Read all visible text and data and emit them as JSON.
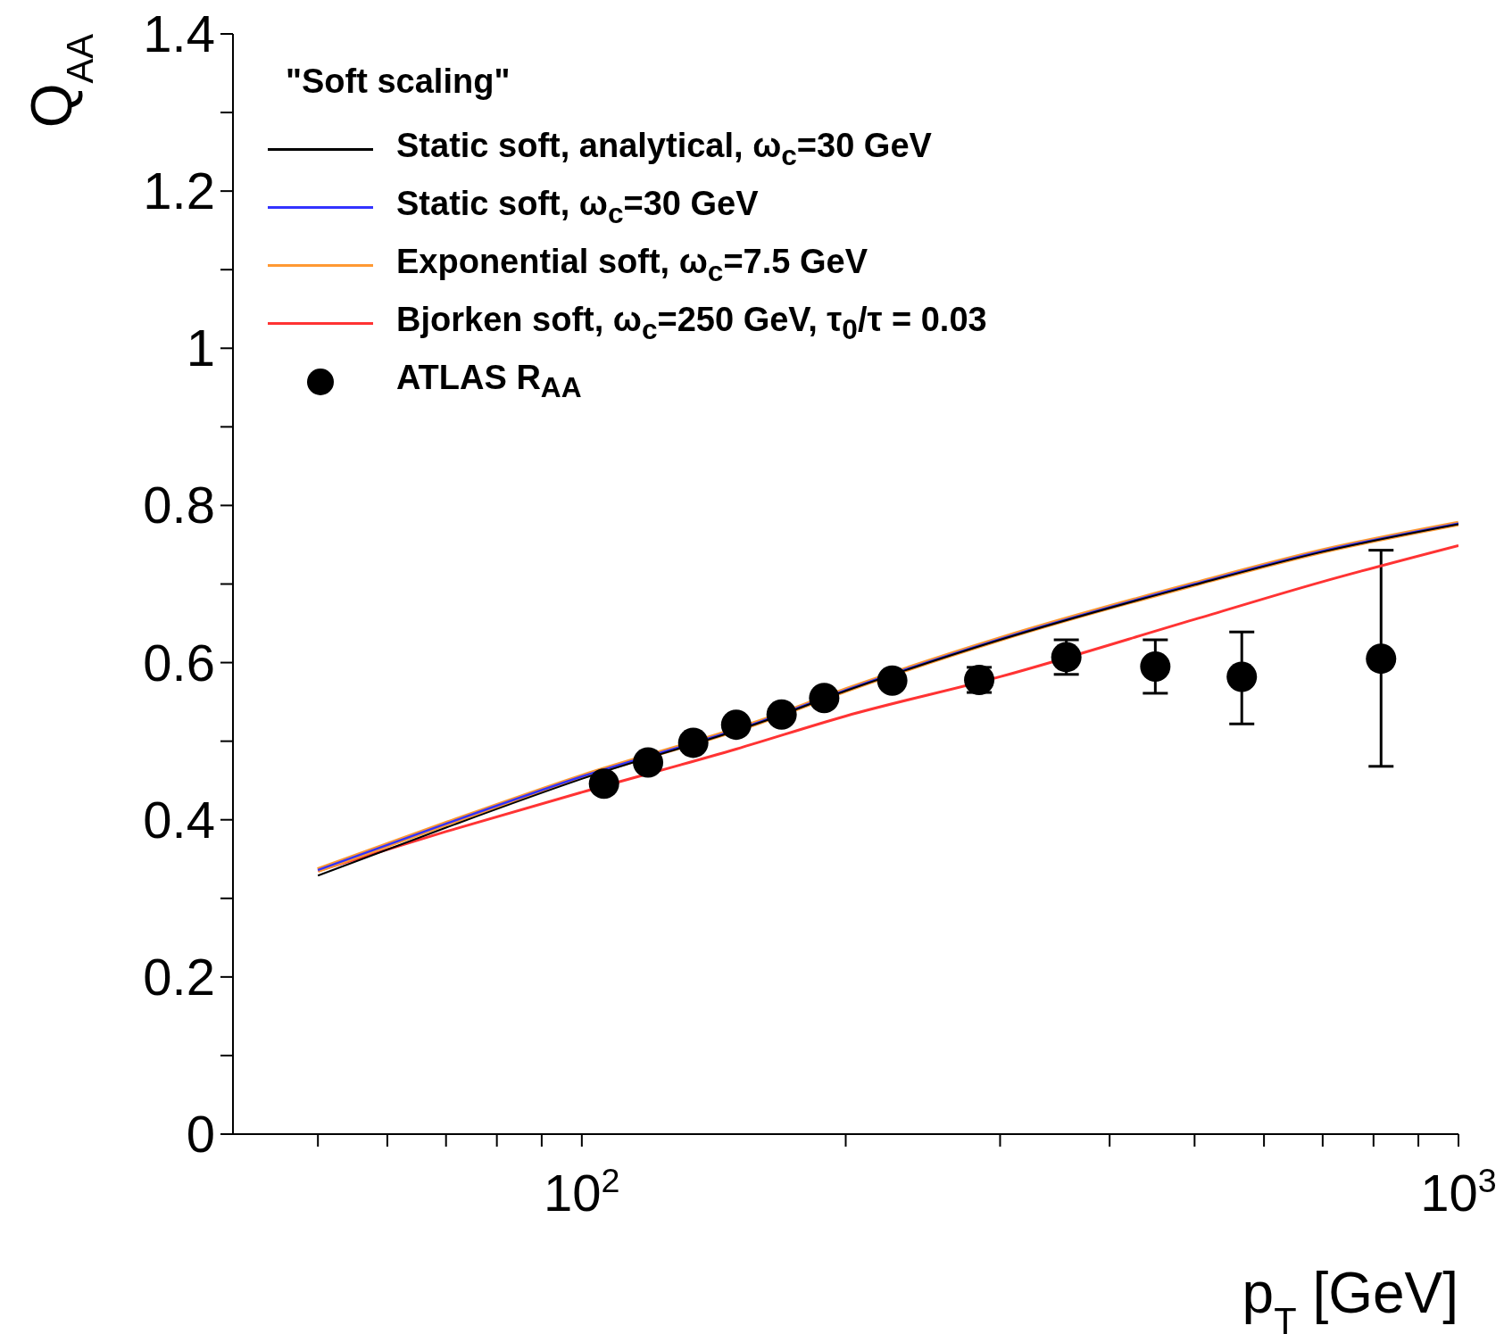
{
  "chart_data": {
    "type": "line",
    "xlabel": "p$_{T}$ [GeV]",
    "ylabel": "Q$_{AA}$",
    "legend_title": "\"Soft scaling\"",
    "legend": "top left",
    "log": "x",
    "grid": false,
    "marker": "none",
    "line_style": "solid",
    "xlim": [
      40,
      1000
    ],
    "xticks": [
      {
        "value": 50,
        "label": null
      },
      {
        "value": 60,
        "label": null
      },
      {
        "value": 70,
        "label": null
      },
      {
        "value": 80,
        "label": null
      },
      {
        "value": 90,
        "label": null
      },
      {
        "value": 100,
        "label": "10$^{2}$"
      },
      {
        "value": 200,
        "label": null
      },
      {
        "value": 300,
        "label": null
      },
      {
        "value": 400,
        "label": null
      },
      {
        "value": 500,
        "label": null
      },
      {
        "value": 600,
        "label": null
      },
      {
        "value": 700,
        "label": null
      },
      {
        "value": 800,
        "label": null
      },
      {
        "value": 900,
        "label": null
      },
      {
        "value": 1000,
        "label": "10$^{3}$"
      }
    ],
    "ylim": [
      0,
      1.4
    ],
    "yticks": [
      0,
      {
        "value": 0.1,
        "label": null
      },
      0.2,
      {
        "value": 0.3,
        "label": null
      },
      0.4,
      {
        "value": 0.5,
        "label": null
      },
      0.6,
      {
        "value": 0.7,
        "label": null
      },
      0.8,
      {
        "value": 0.9,
        "label": null
      },
      1,
      {
        "value": 1.1,
        "label": null
      },
      1.2,
      {
        "value": 1.3,
        "label": null
      },
      1.4
    ],
    "series": [
      {
        "name": "Static soft, analytical, ω$_{c}$=30 GeV",
        "color": "#000000",
        "x": [
          50,
          70,
          100,
          160,
          200,
          300,
          500,
          700,
          1000
        ],
        "values": [
          0.329,
          0.39,
          0.452,
          0.524,
          0.564,
          0.629,
          0.699,
          0.741,
          0.776
        ]
      },
      {
        "name": "Static soft, ω$_{c}$=30 GeV",
        "color": "#3333ff",
        "x": [
          50,
          70,
          100,
          160,
          200,
          300,
          500,
          700,
          1000
        ],
        "values": [
          0.336,
          0.395,
          0.455,
          0.525,
          0.565,
          0.63,
          0.7,
          0.742,
          0.777
        ]
      },
      {
        "name": "Exponential soft, ω$_{c}$=7.5 GeV",
        "color": "#ff9933",
        "x": [
          50,
          70,
          100,
          160,
          200,
          300,
          500,
          700,
          1000
        ],
        "values": [
          0.336,
          0.395,
          0.455,
          0.525,
          0.565,
          0.63,
          0.7,
          0.742,
          0.777
        ]
      },
      {
        "name": "Bjorken soft, ω$_{c}$=250 GeV, τ$_{0}$/τ = 0.03",
        "color": "#ff3333",
        "x": [
          50,
          70,
          100,
          150,
          200,
          300,
          500,
          700,
          1000
        ],
        "values": [
          0.335,
          0.385,
          0.435,
          0.49,
          0.532,
          0.582,
          0.655,
          0.703,
          0.749
        ]
      },
      {
        "name": "ATLAS R$_{AA}$",
        "type": "scatter",
        "marker": "circle",
        "color": "#000000",
        "x": [
          106,
          119,
          134,
          150,
          169,
          189,
          226,
          284,
          357,
          451,
          566,
          816
        ],
        "values": [
          0.446,
          0.473,
          0.498,
          0.521,
          0.534,
          0.555,
          0.577,
          0.578,
          0.607,
          0.595,
          0.582,
          0.605
        ],
        "errors": [
          null,
          null,
          null,
          null,
          null,
          null,
          null,
          [
            0.562,
            0.594
          ],
          [
            0.585,
            0.629
          ],
          [
            0.561,
            0.629
          ],
          [
            0.522,
            0.639
          ],
          [
            0.468,
            0.743
          ]
        ]
      }
    ]
  }
}
